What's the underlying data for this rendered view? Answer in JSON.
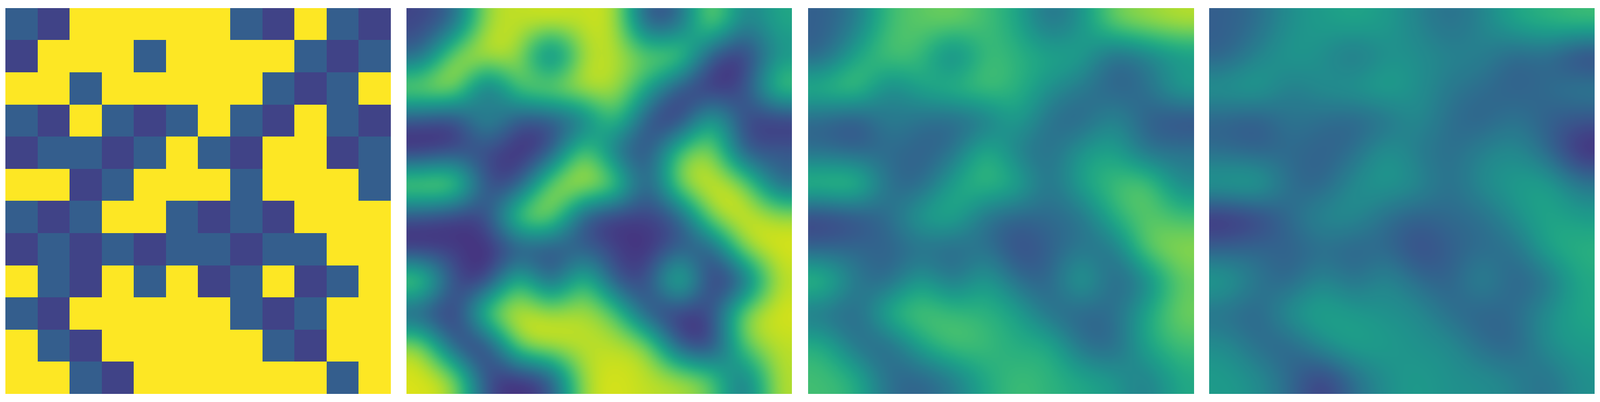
{
  "chart_data": [
    {
      "type": "heatmap",
      "tick_labels": false,
      "zlim": [
        0,
        1
      ],
      "cells": [
        [
          0.3,
          0.2,
          1,
          1,
          1,
          1,
          1,
          0.3,
          0.2,
          1,
          0.3,
          0.2
        ],
        [
          0.2,
          1,
          1,
          1,
          0.3,
          1,
          1,
          1,
          1,
          0.3,
          0.2,
          0.3
        ],
        [
          1,
          1,
          0.3,
          1,
          1,
          1,
          1,
          1,
          0.3,
          0.2,
          0.3,
          1
        ],
        [
          0.3,
          0.2,
          1,
          0.3,
          0.2,
          0.3,
          1,
          0.3,
          0.2,
          1,
          0.3,
          0.2
        ],
        [
          0.2,
          0.3,
          0.3,
          0.2,
          0.3,
          1,
          0.3,
          0.2,
          1,
          1,
          0.2,
          0.3
        ],
        [
          1,
          1,
          0.2,
          0.3,
          1,
          1,
          1,
          0.3,
          1,
          1,
          1,
          0.3
        ],
        [
          0.3,
          0.2,
          0.3,
          1,
          1,
          0.3,
          0.2,
          0.3,
          0.2,
          1,
          1,
          1
        ],
        [
          0.2,
          0.3,
          0.2,
          0.3,
          0.2,
          0.3,
          0.3,
          0.2,
          0.3,
          0.3,
          1,
          1
        ],
        [
          1,
          0.3,
          0.2,
          1,
          0.3,
          1,
          0.2,
          0.3,
          1,
          0.2,
          0.3,
          1
        ],
        [
          0.3,
          0.2,
          1,
          1,
          1,
          1,
          1,
          0.3,
          0.2,
          0.3,
          1,
          1
        ],
        [
          1,
          0.3,
          0.2,
          1,
          1,
          1,
          1,
          1,
          0.3,
          0.2,
          1,
          1
        ],
        [
          1,
          1,
          0.3,
          0.2,
          1,
          1,
          1,
          1,
          1,
          1,
          0.3,
          1
        ]
      ]
    },
    {
      "type": "heatmap",
      "tick_labels": false,
      "zlim": [
        0,
        1
      ],
      "cells": [
        [
          0.2,
          0.3,
          0.9,
          0.9,
          0.95,
          0.9,
          0.95,
          0.2,
          0.3,
          0.9,
          0.4,
          0.6
        ],
        [
          0.3,
          0.9,
          0.95,
          0.9,
          0.2,
          0.9,
          0.9,
          0.8,
          0.9,
          0.2,
          0.1,
          0.5
        ],
        [
          0.9,
          0.95,
          0.2,
          0.8,
          0.9,
          0.95,
          0.9,
          0.6,
          0.2,
          0.1,
          0.2,
          0.8
        ],
        [
          0.2,
          0.1,
          0.6,
          0.2,
          0.2,
          0.3,
          0.8,
          0.2,
          0.1,
          0.7,
          0.2,
          0.1
        ],
        [
          0.1,
          0.2,
          0.2,
          0.1,
          0.2,
          0.9,
          0.3,
          0.2,
          0.8,
          0.9,
          0.2,
          0.3
        ],
        [
          0.9,
          0.95,
          0.2,
          0.2,
          0.9,
          0.95,
          0.9,
          0.2,
          0.9,
          0.95,
          0.9,
          0.3
        ],
        [
          0.2,
          0.1,
          0.2,
          0.9,
          0.9,
          0.2,
          0.1,
          0.2,
          0.2,
          0.9,
          0.95,
          0.9
        ],
        [
          0.1,
          0.2,
          0.1,
          0.2,
          0.2,
          0.3,
          0.2,
          0.1,
          0.3,
          0.2,
          0.9,
          0.95
        ],
        [
          0.9,
          0.2,
          0.1,
          0.8,
          0.2,
          0.8,
          0.2,
          0.2,
          0.9,
          0.1,
          0.2,
          0.9
        ],
        [
          0.2,
          0.1,
          0.9,
          0.95,
          0.9,
          0.9,
          0.8,
          0.2,
          0.1,
          0.2,
          0.9,
          0.95
        ],
        [
          0.9,
          0.2,
          0.1,
          0.9,
          0.95,
          0.9,
          0.9,
          0.9,
          0.2,
          0.1,
          0.8,
          0.9
        ],
        [
          0.95,
          0.9,
          0.2,
          0.1,
          0.2,
          0.9,
          0.95,
          0.9,
          0.9,
          0.8,
          0.3,
          0.9
        ]
      ]
    },
    {
      "type": "heatmap",
      "tick_labels": false,
      "zlim": [
        0,
        1
      ],
      "cells": [
        [
          0.3,
          0.4,
          0.7,
          0.75,
          0.8,
          0.7,
          0.6,
          0.35,
          0.5,
          0.8,
          0.85,
          0.9
        ],
        [
          0.3,
          0.6,
          0.75,
          0.7,
          0.35,
          0.7,
          0.65,
          0.6,
          0.6,
          0.3,
          0.4,
          0.5
        ],
        [
          0.7,
          0.8,
          0.4,
          0.6,
          0.7,
          0.75,
          0.65,
          0.5,
          0.4,
          0.3,
          0.35,
          0.6
        ],
        [
          0.3,
          0.2,
          0.45,
          0.35,
          0.3,
          0.35,
          0.6,
          0.35,
          0.3,
          0.5,
          0.3,
          0.2
        ],
        [
          0.35,
          0.3,
          0.35,
          0.3,
          0.35,
          0.7,
          0.4,
          0.35,
          0.55,
          0.6,
          0.35,
          0.4
        ],
        [
          0.75,
          0.8,
          0.35,
          0.3,
          0.6,
          0.7,
          0.65,
          0.35,
          0.6,
          0.7,
          0.8,
          0.45
        ],
        [
          0.15,
          0.2,
          0.35,
          0.6,
          0.65,
          0.35,
          0.3,
          0.35,
          0.35,
          0.65,
          0.75,
          0.7
        ],
        [
          0.3,
          0.35,
          0.3,
          0.35,
          0.3,
          0.4,
          0.2,
          0.3,
          0.4,
          0.35,
          0.8,
          0.85
        ],
        [
          0.75,
          0.4,
          0.3,
          0.6,
          0.35,
          0.6,
          0.35,
          0.3,
          0.65,
          0.3,
          0.4,
          0.75
        ],
        [
          0.35,
          0.3,
          0.7,
          0.75,
          0.7,
          0.65,
          0.6,
          0.35,
          0.3,
          0.35,
          0.6,
          0.8
        ],
        [
          0.65,
          0.35,
          0.3,
          0.6,
          0.75,
          0.7,
          0.6,
          0.65,
          0.35,
          0.3,
          0.6,
          0.7
        ],
        [
          0.7,
          0.65,
          0.35,
          0.3,
          0.4,
          0.6,
          0.7,
          0.65,
          0.6,
          0.55,
          0.4,
          0.6
        ]
      ]
    },
    {
      "type": "heatmap",
      "tick_labels": false,
      "zlim": [
        0,
        1
      ],
      "cells": [
        [
          0.3,
          0.35,
          0.5,
          0.55,
          0.6,
          0.55,
          0.45,
          0.35,
          0.45,
          0.6,
          0.65,
          0.7
        ],
        [
          0.3,
          0.45,
          0.55,
          0.5,
          0.35,
          0.5,
          0.5,
          0.45,
          0.45,
          0.3,
          0.35,
          0.15
        ],
        [
          0.55,
          0.6,
          0.4,
          0.5,
          0.55,
          0.6,
          0.5,
          0.4,
          0.35,
          0.3,
          0.35,
          0.45
        ],
        [
          0.3,
          0.25,
          0.4,
          0.35,
          0.3,
          0.35,
          0.5,
          0.35,
          0.3,
          0.4,
          0.3,
          0.25
        ],
        [
          0.35,
          0.3,
          0.35,
          0.3,
          0.35,
          0.55,
          0.4,
          0.35,
          0.45,
          0.5,
          0.35,
          0.1
        ],
        [
          0.6,
          0.65,
          0.35,
          0.3,
          0.5,
          0.55,
          0.5,
          0.35,
          0.5,
          0.55,
          0.6,
          0.4
        ],
        [
          0.1,
          0.15,
          0.35,
          0.5,
          0.5,
          0.35,
          0.3,
          0.35,
          0.35,
          0.5,
          0.6,
          0.55
        ],
        [
          0.3,
          0.35,
          0.3,
          0.35,
          0.3,
          0.35,
          0.2,
          0.3,
          0.35,
          0.35,
          0.6,
          0.65
        ],
        [
          0.6,
          0.4,
          0.3,
          0.5,
          0.35,
          0.5,
          0.35,
          0.3,
          0.5,
          0.3,
          0.35,
          0.6
        ],
        [
          0.35,
          0.3,
          0.55,
          0.6,
          0.55,
          0.5,
          0.5,
          0.35,
          0.3,
          0.35,
          0.5,
          0.6
        ],
        [
          0.5,
          0.35,
          0.3,
          0.5,
          0.6,
          0.55,
          0.5,
          0.5,
          0.35,
          0.3,
          0.5,
          0.55
        ],
        [
          0.55,
          0.5,
          0.35,
          0.15,
          0.35,
          0.5,
          0.55,
          0.5,
          0.5,
          0.45,
          0.35,
          0.5
        ]
      ]
    }
  ]
}
